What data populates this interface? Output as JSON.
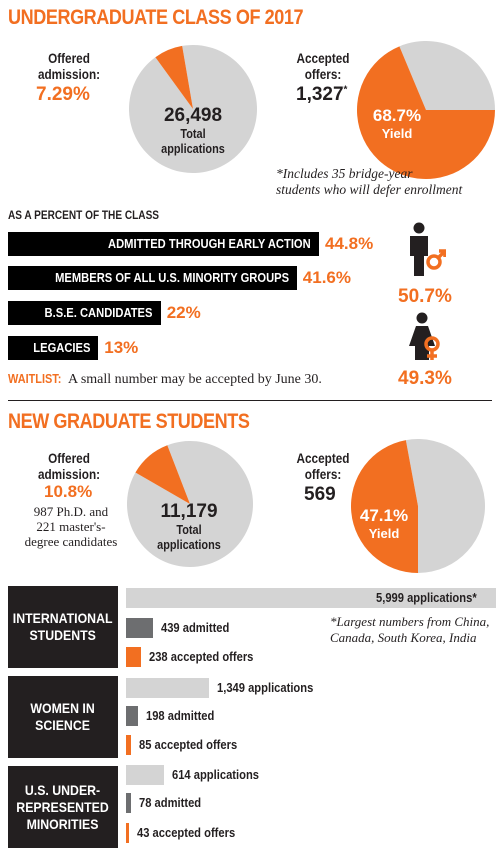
{
  "undergrad": {
    "title": "UNDERGRADUATE CLASS OF 2017",
    "offered_label": [
      "Offered",
      "admission:"
    ],
    "offered_pct": "7.29%",
    "total_value": "26,498",
    "total_label": [
      "Total",
      "applications"
    ],
    "accepted_label": [
      "Accepted",
      "offers:"
    ],
    "accepted_value": "1,327",
    "accepted_mark": "*",
    "yield_pct": "68.7%",
    "yield_label": "Yield",
    "footnote": [
      "*Includes 35 bridge-year",
      "students who will defer enrollment"
    ],
    "percent_heading": "AS A PERCENT OF THE CLASS",
    "waitlist_label": "WAITLIST:",
    "waitlist_text": "A small number may be accepted by June 30.",
    "male_pct": "50.7%",
    "female_pct": "49.3%"
  },
  "graduate": {
    "title": "NEW GRADUATE STUDENTS",
    "offered_label": [
      "Offered",
      "admission:"
    ],
    "offered_pct": "10.8%",
    "offered_note": [
      "987 Ph.D. and",
      "221 master's-",
      "degree candidates"
    ],
    "total_value": "11,179",
    "total_label": [
      "Total",
      "applications"
    ],
    "accepted_label": [
      "Accepted",
      "offers:"
    ],
    "accepted_value": "569",
    "yield_pct": "47.1%",
    "yield_label": "Yield",
    "intl_footnote": [
      "*Largest numbers from China,",
      "Canada, South Korea, India"
    ]
  },
  "colors": {
    "orange": "#f26f21",
    "gray_light": "#d4d4d4",
    "gray_dark": "#6d6e70",
    "black": "#000000"
  },
  "icons": [
    "male-icon",
    "female-icon"
  ],
  "chart_data": [
    {
      "type": "pie",
      "name": "undergrad-offered",
      "slices": [
        {
          "label": "Offered admission",
          "value": 7.29
        },
        {
          "label": "Other",
          "value": 92.71
        }
      ]
    },
    {
      "type": "pie",
      "name": "undergrad-yield",
      "slices": [
        {
          "label": "Yield",
          "value": 68.7
        },
        {
          "label": "Other",
          "value": 31.3
        }
      ]
    },
    {
      "type": "bar",
      "name": "percent-of-class",
      "categories": [
        "ADMITTED THROUGH EARLY ACTION",
        "MEMBERS OF ALL U.S. MINORITY GROUPS",
        "B.S.E. CANDIDATES",
        "LEGACIES"
      ],
      "values": [
        44.8,
        41.6,
        22,
        13
      ],
      "labels": [
        "44.8%",
        "41.6%",
        "22%",
        "13%"
      ]
    },
    {
      "type": "pie",
      "name": "grad-offered",
      "slices": [
        {
          "label": "Offered admission",
          "value": 10.8
        },
        {
          "label": "Other",
          "value": 89.2
        }
      ]
    },
    {
      "type": "pie",
      "name": "grad-yield",
      "slices": [
        {
          "label": "Yield",
          "value": 47.1
        },
        {
          "label": "Other",
          "value": 52.9
        }
      ]
    },
    {
      "type": "bar",
      "name": "graduate-groups",
      "groups": [
        {
          "category": "INTERNATIONAL STUDENTS",
          "title_lines": [
            "INTERNATIONAL",
            "STUDENTS"
          ],
          "applications": 5999,
          "admitted": 439,
          "accepted": 238,
          "labels": [
            "5,999 applications",
            "439 admitted",
            "238 accepted offers"
          ],
          "app_mark": "*"
        },
        {
          "category": "WOMEN IN SCIENCE",
          "title_lines": [
            "WOMEN IN",
            "SCIENCE"
          ],
          "applications": 1349,
          "admitted": 198,
          "accepted": 85,
          "labels": [
            "1,349 applications",
            "198 admitted",
            "85 accepted offers"
          ]
        },
        {
          "category": "U.S. UNDER-REPRESENTED MINORITIES",
          "title_lines": [
            "U.S. UNDER-",
            "REPRESENTED",
            "MINORITIES"
          ],
          "applications": 614,
          "admitted": 78,
          "accepted": 43,
          "labels": [
            "614 applications",
            "78 admitted",
            "43 accepted offers"
          ]
        }
      ]
    }
  ]
}
